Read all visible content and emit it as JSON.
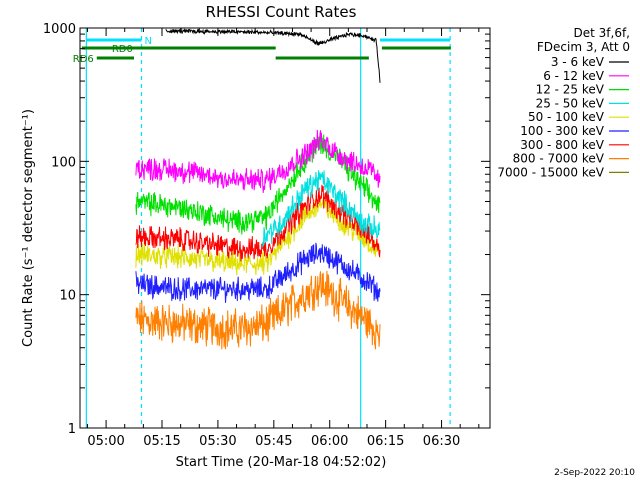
{
  "chart_data": {
    "type": "line",
    "title": "RHESSI Count Rates",
    "xlabel": "Start Time (20-Mar-18 04:52:02)",
    "ylabel": "Count Rate (s⁻¹ detector segment⁻¹)",
    "yscale": "log",
    "ylim": [
      1,
      1000
    ],
    "xlim_minutes": [
      -7.0,
      103.0
    ],
    "x_ticks": [
      {
        "t": 0,
        "label": "05:00"
      },
      {
        "t": 15,
        "label": "05:15"
      },
      {
        "t": 30,
        "label": "05:30"
      },
      {
        "t": 45,
        "label": "05:45"
      },
      {
        "t": 60,
        "label": "06:00"
      },
      {
        "t": 75,
        "label": "06:15"
      },
      {
        "t": 90,
        "label": "06:30"
      }
    ],
    "y_ticks": [
      {
        "v": 1,
        "label": "1"
      },
      {
        "v": 10,
        "label": "10"
      },
      {
        "v": 100,
        "label": "100"
      },
      {
        "v": 1000,
        "label": "1000"
      }
    ],
    "legend_header": [
      "Det 3f,6f,",
      "FDecim 3, Att 0"
    ],
    "series": [
      {
        "name": "3 - 6 keV",
        "color": "#000000",
        "t": [
          16,
          30,
          40,
          52,
          57,
          65,
          69,
          72.5,
          73.5
        ],
        "values": [
          950,
          940,
          930,
          900,
          760,
          900,
          880,
          800,
          400
        ]
      },
      {
        "name": "6 - 12 keV",
        "color": "#ff00ff",
        "t": [
          8,
          20,
          35,
          43,
          53,
          57.5,
          63,
          71,
          73.5
        ],
        "values": [
          90,
          85,
          72,
          72,
          110,
          145,
          110,
          85,
          70
        ]
      },
      {
        "name": "12 - 25 keV",
        "color": "#00e000",
        "t": [
          8,
          20,
          35,
          43,
          53,
          57.5,
          63,
          71,
          73.5
        ],
        "values": [
          50,
          45,
          35,
          38,
          100,
          140,
          100,
          55,
          45
        ]
      },
      {
        "name": "25 - 50 keV",
        "color": "#00e0e0",
        "t": [
          42,
          47,
          53,
          57.5,
          63,
          69,
          73.5
        ],
        "values": [
          27,
          34,
          60,
          75,
          52,
          34,
          30
        ]
      },
      {
        "name": "50 - 100 keV",
        "color": "#e0e000",
        "t": [
          8,
          20,
          35,
          43,
          53,
          57.5,
          63,
          71,
          73.5
        ],
        "values": [
          20,
          19,
          17,
          17,
          38,
          48,
          36,
          24,
          20
        ]
      },
      {
        "name": "100 - 300 keV",
        "color": "#2020ff",
        "t": [
          8,
          20,
          35,
          43,
          53,
          57.5,
          63,
          71,
          73.5
        ],
        "values": [
          12,
          11,
          11,
          11,
          18,
          21,
          17,
          12,
          10
        ]
      },
      {
        "name": "300 - 800 keV",
        "color": "#ff0000",
        "t": [
          8,
          20,
          35,
          43,
          53,
          57.5,
          63,
          71,
          73.5
        ],
        "values": [
          27,
          26,
          22,
          22,
          45,
          57,
          42,
          27,
          22
        ]
      },
      {
        "name": "800 - 7000 keV",
        "color": "#ff8000",
        "t": [
          8,
          20,
          35,
          43,
          53,
          57.5,
          63,
          71,
          73.5
        ],
        "values": [
          6.5,
          6,
          5.5,
          6,
          10,
          12,
          9,
          6,
          5
        ]
      },
      {
        "name": "7000 - 15000 keV",
        "color": "#808000",
        "t": [],
        "values": []
      }
    ],
    "vertical_lines": [
      {
        "t": -5.3,
        "style": "solid",
        "color": "#00e0ff"
      },
      {
        "t": 9.5,
        "style": "dashed",
        "color": "#00e0ff"
      },
      {
        "t": 68.3,
        "style": "solid",
        "color": "#00e0ff"
      },
      {
        "t": 92.3,
        "style": "dashed",
        "color": "#00e0ff"
      }
    ],
    "annotations": {
      "bars": [
        {
          "label": "N",
          "t0": -5.3,
          "t1": 9.5,
          "level": 1,
          "color": "#00e0ff"
        },
        {
          "label": "",
          "t0": 73.5,
          "t1": 92.3,
          "level": 1,
          "color": "#00e0ff"
        },
        {
          "label": "RD0",
          "t0": -6.5,
          "t1": 45.5,
          "level": 2,
          "color": "#008000"
        },
        {
          "label": "",
          "t0": 74,
          "t1": 92.5,
          "level": 2,
          "color": "#008000"
        },
        {
          "label": "RD6",
          "t0": -2.5,
          "t1": 7.5,
          "level": 3,
          "color": "#008000"
        },
        {
          "label": "",
          "t0": 45.5,
          "t1": 70.5,
          "level": 3,
          "color": "#008000"
        }
      ]
    },
    "footer_date": "2-Sep-2022 20:10"
  }
}
